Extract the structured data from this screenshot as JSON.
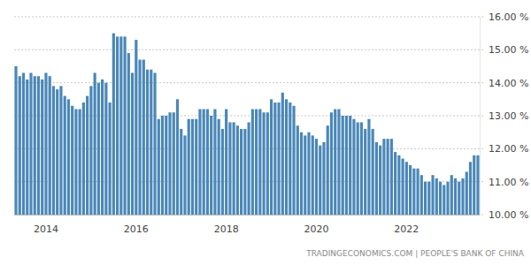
{
  "chart_data": {
    "type": "bar",
    "categories": [
      null,
      null,
      null,
      null,
      null,
      null,
      null,
      null,
      "2014",
      null,
      null,
      null,
      null,
      null,
      null,
      null,
      null,
      null,
      null,
      null,
      null,
      null,
      null,
      null,
      null,
      null,
      null,
      null,
      null,
      null,
      null,
      null,
      "2016",
      null,
      null,
      null,
      null,
      null,
      null,
      null,
      null,
      null,
      null,
      null,
      null,
      null,
      null,
      null,
      null,
      null,
      null,
      null,
      null,
      null,
      null,
      null,
      "2018",
      null,
      null,
      null,
      null,
      null,
      null,
      null,
      null,
      null,
      null,
      null,
      null,
      null,
      null,
      null,
      null,
      null,
      null,
      null,
      null,
      null,
      null,
      null,
      "2020",
      null,
      null,
      null,
      null,
      null,
      null,
      null,
      null,
      null,
      null,
      null,
      null,
      null,
      null,
      null,
      null,
      null,
      null,
      null,
      null,
      null,
      null,
      null,
      "2022",
      null,
      null,
      null,
      null,
      null,
      null,
      null,
      null,
      null,
      null,
      null,
      null,
      null,
      null,
      null,
      null,
      null,
      null,
      null
    ],
    "values": [
      14.5,
      14.2,
      14.3,
      14.1,
      14.3,
      14.2,
      14.2,
      14.1,
      14.3,
      14.2,
      13.9,
      13.8,
      13.9,
      13.6,
      13.5,
      13.3,
      13.2,
      13.2,
      13.4,
      13.6,
      13.9,
      14.3,
      14.0,
      14.1,
      14.0,
      13.4,
      15.5,
      15.4,
      15.4,
      15.4,
      14.9,
      14.3,
      15.3,
      14.7,
      14.7,
      14.4,
      14.4,
      14.3,
      12.9,
      13.0,
      13.0,
      13.1,
      13.1,
      13.5,
      12.6,
      12.4,
      12.9,
      12.9,
      12.9,
      13.2,
      13.2,
      13.2,
      13.0,
      13.2,
      12.9,
      12.6,
      13.2,
      12.8,
      12.8,
      12.7,
      12.6,
      12.6,
      12.8,
      13.2,
      13.2,
      13.2,
      13.1,
      13.1,
      13.5,
      13.4,
      13.4,
      13.7,
      13.5,
      13.4,
      13.3,
      12.7,
      12.5,
      12.4,
      12.5,
      12.4,
      12.3,
      12.1,
      12.2,
      12.7,
      13.1,
      13.2,
      13.2,
      13.0,
      13.0,
      13.0,
      12.9,
      12.8,
      12.8,
      12.6,
      12.9,
      12.6,
      12.2,
      12.1,
      12.3,
      12.3,
      12.3,
      11.9,
      11.8,
      11.7,
      11.6,
      11.5,
      11.4,
      11.4,
      11.2,
      11.0,
      11.0,
      11.2,
      11.1,
      11.0,
      10.9,
      11.0,
      11.2,
      11.1,
      11.0,
      11.1,
      11.3,
      11.6,
      11.8,
      11.8
    ],
    "color": "#4a87b8",
    "ylim": [
      10,
      16
    ],
    "yticks": [
      {
        "value": 10,
        "label": "10.00 %"
      },
      {
        "value": 11,
        "label": "11.00 %"
      },
      {
        "value": 12,
        "label": "12.00 %"
      },
      {
        "value": 13,
        "label": "13.00 %"
      },
      {
        "value": 14,
        "label": "14.00 %"
      },
      {
        "value": 15,
        "label": "15.00 %"
      },
      {
        "value": 16,
        "label": "16.00 %"
      }
    ],
    "grid": true,
    "source": "TRADINGECONOMICS.COM | PEOPLE'S BANK OF CHINA"
  }
}
